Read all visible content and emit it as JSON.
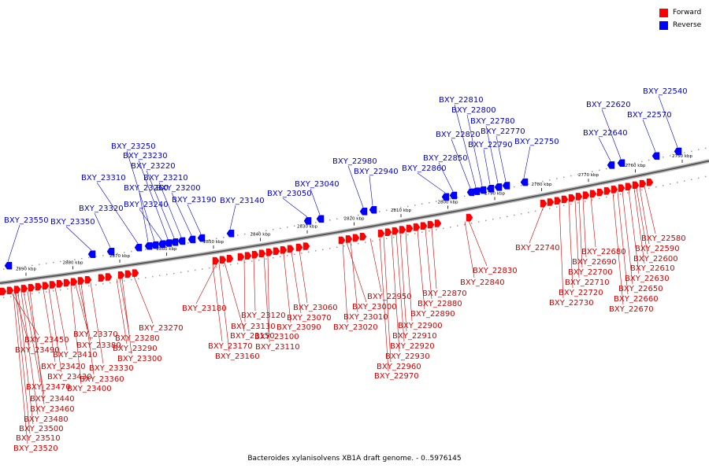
{
  "legend": {
    "forward_label": "Forward",
    "reverse_label": "Reverse",
    "forward_color": "#ff0000",
    "reverse_color": "#0000ff"
  },
  "caption": "Bacteroides xylanisolvens XB1A draft genome. - 0..5976145",
  "colors": {
    "backbone": "#999999",
    "forward_label": "#cc0000",
    "reverse_label": "#0000cc"
  },
  "ticks": [
    "2890 kbp",
    "2880 kbp",
    "2870 kbp",
    "2860 kbp",
    "2850 kbp",
    "2840 kbp",
    "2830 kbp",
    "2820 kbp",
    "2810 kbp",
    "2800 kbp",
    "2790 kbp",
    "2780 kbp",
    "2770 kbp",
    "2760 kbp",
    "2750 kbp"
  ],
  "reverse_genes": [
    "BXY_23550",
    "BXY_23350",
    "BXY_23320",
    "BXY_23310",
    "BXY_23260",
    "BXY_23250",
    "BXY_23240",
    "BXY_23230",
    "BXY_23220",
    "BXY_23210",
    "BXY_23200",
    "BXY_23190",
    "BXY_23140",
    "BXY_23050",
    "BXY_23040",
    "BXY_22980",
    "BXY_22940",
    "BXY_22860",
    "BXY_22850",
    "BXY_22820",
    "BXY_22810",
    "BXY_22800",
    "BXY_22790",
    "BXY_22780",
    "BXY_22770",
    "BXY_22750",
    "BXY_22640",
    "BXY_22620",
    "BXY_22570",
    "BXY_22540"
  ],
  "forward_genes": [
    "BXY_23450",
    "BXY_23490",
    "BXY_23410",
    "BXY_23420",
    "BXY_23430",
    "BXY_23470",
    "BXY_23440",
    "BXY_23460",
    "BXY_23480",
    "BXY_23500",
    "BXY_23510",
    "BXY_23520",
    "BXY_23370",
    "BXY_23380",
    "BXY_23330",
    "BXY_23360",
    "BXY_23400",
    "BXY_23270",
    "BXY_23280",
    "BXY_23290",
    "BXY_23300",
    "BXY_23180",
    "BXY_23150",
    "BXY_23170",
    "BXY_23160",
    "BXY_23120",
    "BXY_23130",
    "BXY_23100",
    "BXY_23110",
    "BXY_23060",
    "BXY_23070",
    "BXY_23090",
    "BXY_23000",
    "BXY_23010",
    "BXY_23020",
    "BXY_22950",
    "BXY_22870",
    "BXY_22880",
    "BXY_22890",
    "BXY_22900",
    "BXY_22910",
    "BXY_22920",
    "BXY_22930",
    "BXY_22960",
    "BXY_22970",
    "BXY_22830",
    "BXY_22840",
    "BXY_22740",
    "BXY_22680",
    "BXY_22690",
    "BXY_22700",
    "BXY_22710",
    "BXY_22720",
    "BXY_22730",
    "BXY_22580",
    "BXY_22590",
    "BXY_22600",
    "BXY_22610",
    "BXY_22630",
    "BXY_22650",
    "BXY_22660",
    "BXY_22670"
  ]
}
